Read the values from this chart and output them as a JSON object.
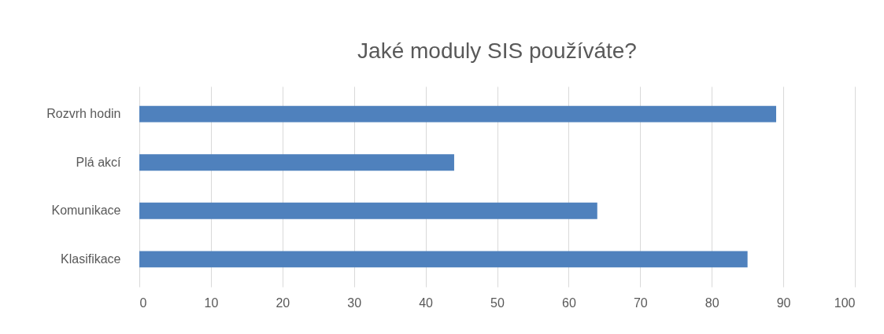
{
  "chart_data": {
    "type": "bar",
    "orientation": "horizontal",
    "title": "Jaké moduly SIS používáte?",
    "categories": [
      "Rozvrh hodin",
      "Plá akcí",
      "Komunikace",
      "Klasifikace"
    ],
    "values": [
      89,
      44,
      64,
      85
    ],
    "color": "#4f81bd",
    "xlim": [
      0,
      100
    ],
    "xticks": [
      0,
      10,
      20,
      30,
      40,
      50,
      60,
      70,
      80,
      90,
      100
    ],
    "grid": "x"
  }
}
